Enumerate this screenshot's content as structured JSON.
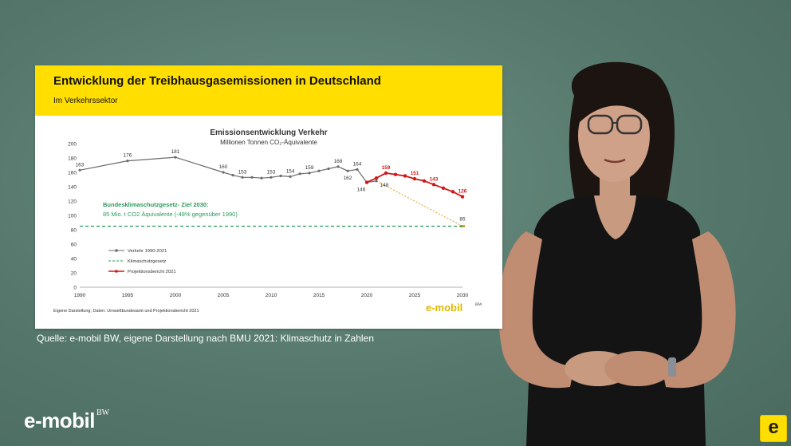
{
  "slide": {
    "title": "Entwicklung der Treibhausgasemissionen in Deutschland",
    "subtitle": "Im Verkehrssektor",
    "footnote": "Eigene Darstellung; Daten: Umweltbundesamt und Projektionsbericht 2021",
    "logo_text": "e-mobil",
    "logo_bw": "BW"
  },
  "caption": "Quelle: e-mobil BW, eigene Darstellung nach BMU 2021: Klimaschutz in Zahlen",
  "brand": {
    "word": "e-mobil",
    "bw": "BW",
    "badge": "e"
  },
  "colors": {
    "header": "#ffde00",
    "verkehr": "#6b6b6b",
    "ziel": "#2a9a5a",
    "projektion": "#d01818",
    "trend": "#e0a020"
  },
  "chart_data": {
    "type": "line",
    "title": "Emissionsentwicklung Verkehr",
    "subtitle": "Millionen Tonnen CO₂-Äquivalente",
    "xlim": [
      1990,
      2030
    ],
    "ylim": [
      0,
      200
    ],
    "x_ticks": [
      1990,
      1995,
      2000,
      2005,
      2010,
      2015,
      2020,
      2025,
      2030
    ],
    "y_ticks": [
      0,
      20,
      40,
      60,
      80,
      100,
      120,
      140,
      160,
      180,
      200
    ],
    "legend_position": "bottom-left",
    "series": [
      {
        "name": "Verkehr 1990-2021",
        "style": "line-markers",
        "x": [
          1990,
          1995,
          2000,
          2005,
          2006,
          2007,
          2008,
          2009,
          2010,
          2011,
          2012,
          2013,
          2014,
          2015,
          2016,
          2017,
          2018,
          2019,
          2020,
          2021
        ],
        "y": [
          163,
          176,
          181,
          160,
          156,
          153,
          153,
          152,
          153,
          155,
          154,
          158,
          159,
          162,
          165,
          168,
          162,
          164,
          146,
          148
        ]
      },
      {
        "name": "Klimaschutzgesetz",
        "style": "dashed",
        "x": [
          1990,
          2030
        ],
        "y": [
          85,
          85
        ]
      },
      {
        "name": "Projektionsbericht 2021",
        "style": "line-markers",
        "x": [
          2020,
          2021,
          2022,
          2023,
          2024,
          2025,
          2026,
          2027,
          2028,
          2029,
          2030
        ],
        "y": [
          146,
          152,
          159,
          157,
          155,
          151,
          148,
          143,
          138,
          133,
          126
        ]
      }
    ],
    "data_labels": [
      {
        "x": 1990,
        "y": 163,
        "text": "163",
        "series": 0
      },
      {
        "x": 1995,
        "y": 176,
        "text": "176",
        "series": 0
      },
      {
        "x": 2000,
        "y": 181,
        "text": "181",
        "series": 0
      },
      {
        "x": 2005,
        "y": 160,
        "text": "160",
        "series": 0
      },
      {
        "x": 2007,
        "y": 153,
        "text": "153",
        "series": 0
      },
      {
        "x": 2010,
        "y": 153,
        "text": "153",
        "series": 0
      },
      {
        "x": 2012,
        "y": 154,
        "text": "154",
        "series": 0
      },
      {
        "x": 2014,
        "y": 159,
        "text": "159",
        "series": 0
      },
      {
        "x": 2017,
        "y": 168,
        "text": "168",
        "series": 0
      },
      {
        "x": 2018,
        "y": 162,
        "text": "162",
        "series": 0
      },
      {
        "x": 2019,
        "y": 164,
        "text": "164",
        "series": 0
      },
      {
        "x": 2020,
        "y": 146,
        "text": "146",
        "series": 0
      },
      {
        "x": 2021,
        "y": 148,
        "text": "148",
        "series": 0
      },
      {
        "x": 2022,
        "y": 159,
        "text": "159",
        "series": 2
      },
      {
        "x": 2025,
        "y": 151,
        "text": "151",
        "series": 2
      },
      {
        "x": 2027,
        "y": 143,
        "text": "143",
        "series": 2
      },
      {
        "x": 2030,
        "y": 126,
        "text": "126",
        "series": 2
      },
      {
        "x": 2030,
        "y": 85,
        "text": "85",
        "series": 1
      }
    ],
    "trend_line": {
      "from": [
        2021,
        148
      ],
      "to": [
        2030,
        85
      ]
    },
    "annotation": {
      "title": "Bundesklimaschutzgesetz- Ziel 2030:",
      "text": "85 Mio. t CO2 Äquivalente (-48% gegenüber 1990)"
    }
  }
}
